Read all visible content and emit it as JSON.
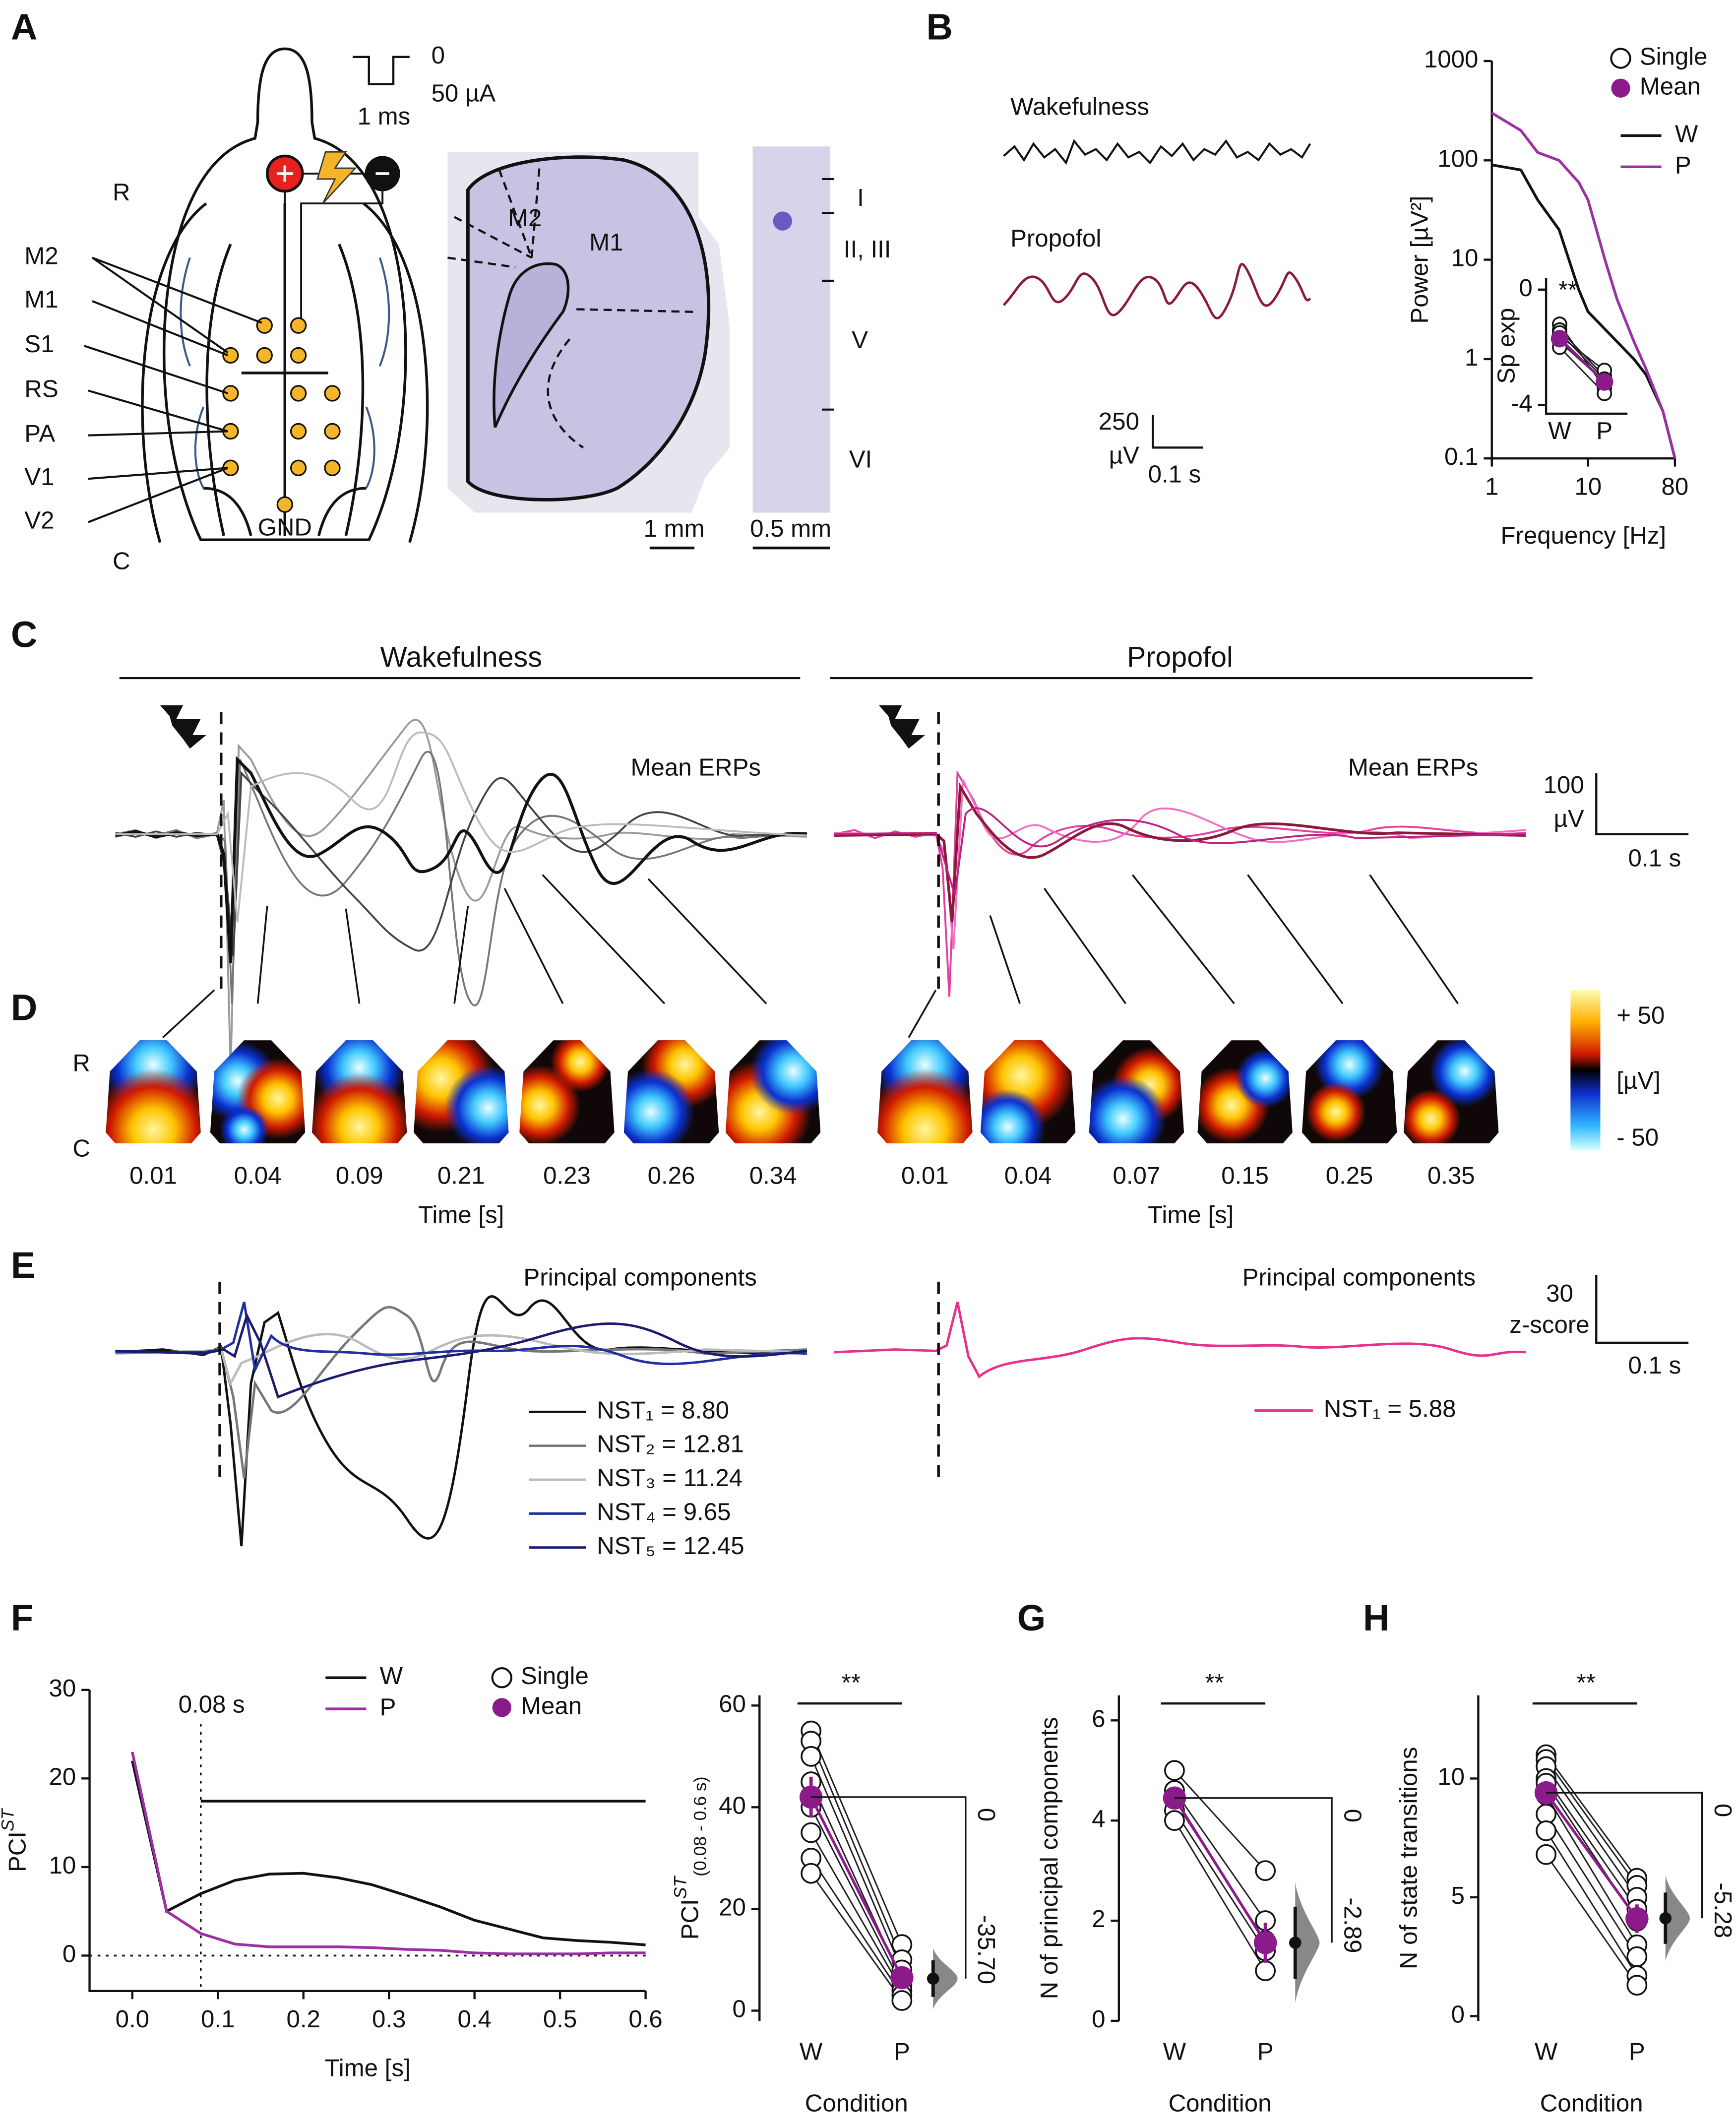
{
  "letters": [
    "A",
    "B",
    "C",
    "D",
    "E",
    "F",
    "G",
    "H"
  ],
  "panel_a": {
    "orientation": [
      "R",
      "C"
    ],
    "regions": [
      "M2",
      "M1",
      "S1",
      "RS",
      "PA",
      "V1",
      "V2"
    ],
    "ground": "GND",
    "pulse": [
      "0",
      "50 µA",
      "1 ms"
    ],
    "slice_labels": [
      "M2",
      "M1"
    ],
    "layers": [
      "I",
      "II, III",
      "V",
      "VI"
    ],
    "scale_bars": [
      "1 mm",
      "0.5 mm"
    ]
  },
  "panel_b": {
    "traces": [
      "Wakefulness",
      "Propofol"
    ],
    "scale": [
      "250",
      "µV",
      "0.1 s"
    ]
  },
  "panel_c": {
    "conditions": [
      "Wakefulness",
      "Propofol"
    ],
    "trace_label": "Mean ERPs",
    "scale": [
      "100",
      "µV",
      "0.1 s"
    ]
  },
  "panel_d": {
    "orientation": [
      "R",
      "C"
    ],
    "times_w": [
      0.01,
      0.04,
      0.09,
      0.21,
      0.23,
      0.26,
      0.34
    ],
    "times_p": [
      0.01,
      0.04,
      0.07,
      0.15,
      0.25,
      0.35
    ],
    "xlabel": "Time [s]",
    "colorbar": [
      "+ 50",
      "[µV]",
      "- 50"
    ]
  },
  "panel_e": {
    "title": "Principal components",
    "legend_w": [
      "NST₁ = 8.80",
      "NST₂ = 12.81",
      "NST₃ = 11.24",
      "NST₄ = 9.65",
      "NST₅ = 12.45"
    ],
    "legend_p": [
      "NST₁ = 5.88"
    ],
    "scale": [
      "30",
      "z-score",
      "0.1 s"
    ]
  },
  "chart_data": [
    {
      "type": "line",
      "log_scale": true,
      "x": [
        1,
        2,
        3,
        5,
        8,
        10,
        15,
        20,
        30,
        40,
        60,
        80
      ],
      "series": [
        {
          "name": "W",
          "color": "#111111",
          "values": [
            90,
            80,
            40,
            20,
            5,
            3,
            2,
            1.5,
            1,
            0.7,
            0.3,
            0.1
          ]
        },
        {
          "name": "P",
          "color": "#9b2fa3",
          "values": [
            300,
            200,
            120,
            100,
            60,
            40,
            10,
            4,
            1.5,
            0.8,
            0.3,
            0.1
          ]
        }
      ],
      "xlim": [
        1,
        80
      ],
      "ylim": [
        0.1,
        1000
      ],
      "xticks": [
        1,
        10,
        80
      ],
      "yticks": [
        0.1,
        1,
        10,
        100,
        1000
      ],
      "xlabel": "Frequency [Hz]",
      "ylabel": "Power [µV²]",
      "marker_legend": [
        "Single",
        "Mean"
      ],
      "mean_color": "#8b1a8b"
    },
    {
      "type": "paired",
      "ylabel": "Sp exp",
      "categories": [
        "W",
        "P"
      ],
      "pairs": [
        [
          -1.2,
          -3.4
        ],
        [
          -1.4,
          -3.0
        ],
        [
          -1.6,
          -2.8
        ],
        [
          -1.8,
          -3.2
        ],
        [
          -2.0,
          -3.6
        ],
        [
          -1.5,
          -3.1
        ]
      ],
      "mean": [
        -1.7,
        -3.2
      ],
      "ylim": [
        -4.3,
        0.4
      ],
      "yticks": [
        0,
        -4
      ],
      "significance": "**",
      "mean_color": "#8b1a8b"
    },
    {
      "type": "line",
      "x": [
        0,
        0.04,
        0.08,
        0.12,
        0.16,
        0.2,
        0.24,
        0.28,
        0.32,
        0.36,
        0.4,
        0.44,
        0.48,
        0.52,
        0.56,
        0.6
      ],
      "series": [
        {
          "name": "W",
          "color": "#111111",
          "values": [
            22,
            5,
            7,
            8.5,
            9.2,
            9.3,
            8.8,
            8,
            6.8,
            5.5,
            4,
            3,
            2,
            1.7,
            1.5,
            1.2
          ]
        },
        {
          "name": "P",
          "color": "#9b2fa3",
          "values": [
            23,
            5,
            2.5,
            1.3,
            1,
            1,
            1,
            0.9,
            0.7,
            0.6,
            0.3,
            0.2,
            0.2,
            0.2,
            0.3,
            0.3
          ]
        }
      ],
      "xlim": [
        -0.05,
        0.6
      ],
      "ylim": [
        -4,
        30
      ],
      "xticks": [
        {
          "value": 0,
          "label": "0.0"
        },
        0.1,
        0.2,
        0.3,
        0.4,
        0.5,
        0.6
      ],
      "yticks": [
        0,
        10,
        20,
        30
      ],
      "xlabel": "Time [s]",
      "ylabel": [
        "PCI",
        "ST"
      ],
      "marker_x": 0.08,
      "annotation": "0.08 s",
      "zero_line": true,
      "marker_legend": [
        "Single",
        "Mean"
      ],
      "mean_color": "#8b1a8b"
    },
    {
      "type": "paired",
      "ylabel": [
        "PCI",
        "ST",
        "(0.08 - 0.6 s)"
      ],
      "xlabel": "Condition",
      "categories": [
        "W",
        "P"
      ],
      "pairs": [
        [
          55,
          13
        ],
        [
          53,
          10
        ],
        [
          50,
          8
        ],
        [
          45,
          6
        ],
        [
          40,
          5
        ],
        [
          35,
          4
        ],
        [
          30,
          3
        ],
        [
          27,
          2
        ]
      ],
      "mean": [
        42,
        6.5
      ],
      "error": [
        4,
        2
      ],
      "delta_ticks": [
        0,
        {
          "value": -35.7,
          "label": "-35.70"
        }
      ],
      "ylim": [
        -2,
        62
      ],
      "yticks": [
        0,
        20,
        40,
        60
      ],
      "significance": "**",
      "mean_color": "#8b1a8b"
    },
    {
      "type": "paired",
      "ylabel": "N of principal components",
      "xlabel": "Condition",
      "categories": [
        "W",
        "P"
      ],
      "pairs": [
        [
          5,
          3
        ],
        [
          4.6,
          2
        ],
        [
          4.4,
          1.6
        ],
        [
          4.2,
          1.4
        ],
        [
          4,
          1
        ]
      ],
      "mean": [
        4.45,
        1.56
      ],
      "error": [
        0.2,
        0.4
      ],
      "delta_ticks": [
        0,
        {
          "value": -2.89,
          "label": "-2.89"
        }
      ],
      "ylim": [
        0,
        6.5
      ],
      "yticks": [
        0,
        2,
        4,
        6
      ],
      "significance": "**",
      "mean_color": "#8b1a8b"
    },
    {
      "type": "paired",
      "ylabel": "N of state transitions",
      "xlabel": "Condition",
      "categories": [
        "W",
        "P"
      ],
      "pairs": [
        [
          11,
          5.8
        ],
        [
          10.8,
          5.5
        ],
        [
          10.5,
          5
        ],
        [
          10,
          4.5
        ],
        [
          9.8,
          4
        ],
        [
          9.3,
          3
        ],
        [
          8.5,
          2.5
        ],
        [
          7.8,
          1.7
        ],
        [
          6.8,
          1.3
        ]
      ],
      "mean": [
        9.4,
        4.1
      ],
      "error": [
        0.5,
        0.6
      ],
      "delta_ticks": [
        0,
        {
          "value": -5.28,
          "label": "-5.28"
        }
      ],
      "ylim": [
        -0.2,
        13.5
      ],
      "yticks": [
        0,
        5,
        10
      ],
      "significance": "**",
      "mean_color": "#8b1a8b"
    }
  ]
}
